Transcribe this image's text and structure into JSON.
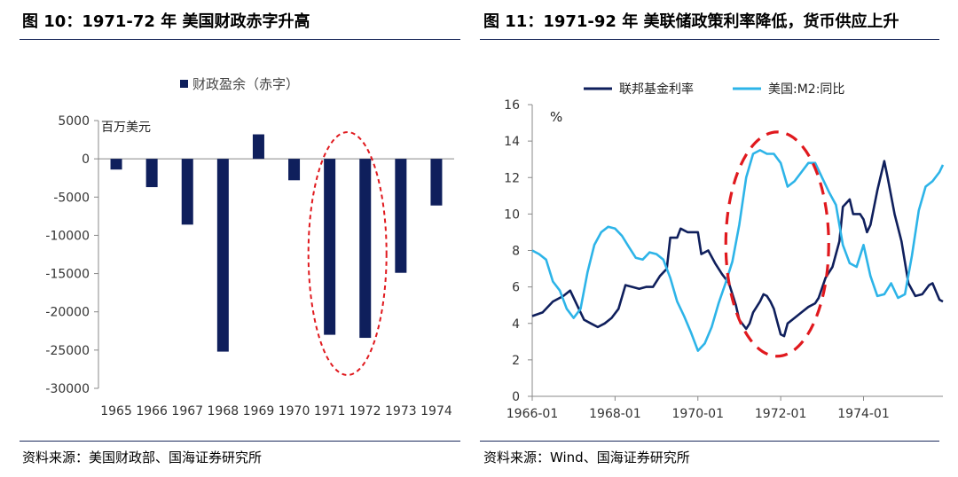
{
  "left": {
    "title": "图 10：1971-72 年  美国财政赤字升高",
    "source": "资料来源：美国财政部、国海证券研究所"
  },
  "right": {
    "title": "图 11：1971-92 年  美联储政策利率降低，货币供应上升",
    "source": "资料来源：Wind、国海证券研究所"
  },
  "colors": {
    "navy": "#0f1f5c",
    "cyan": "#2db4e8",
    "red": "#e0191e",
    "axis": "#888888"
  },
  "chart_data": [
    {
      "type": "bar",
      "title": "",
      "legend": "财政盈余（赤字）",
      "legend_position": "top",
      "unit_label": "百万美元",
      "categories": [
        "1965",
        "1966",
        "1967",
        "1968",
        "1969",
        "1970",
        "1971",
        "1972",
        "1973",
        "1974"
      ],
      "values": [
        -1400,
        -3700,
        -8600,
        -25200,
        3200,
        -2800,
        -23000,
        -23400,
        -14900,
        -6100
      ],
      "ylim": [
        -30000,
        5000
      ],
      "yticks": [
        5000,
        0,
        -5000,
        -10000,
        -15000,
        -20000,
        -25000,
        -30000
      ],
      "grid": false,
      "annotation": {
        "type": "ellipse",
        "style": "dashed",
        "color": "#e0191e",
        "highlight": [
          "1971",
          "1972"
        ]
      }
    },
    {
      "type": "line",
      "title": "",
      "ylabel": "%",
      "ylim": [
        0,
        16
      ],
      "yticks": [
        0,
        2,
        4,
        6,
        8,
        10,
        12,
        14,
        16
      ],
      "xlim": [
        "1966-01",
        "1975-12"
      ],
      "xticks": [
        "1966-01",
        "1968-01",
        "1970-01",
        "1972-01",
        "1974-01"
      ],
      "legend_position": "top",
      "grid": false,
      "series": [
        {
          "name": "联邦基金利率",
          "color": "#0f1f5c",
          "points": [
            [
              "1966-01",
              4.4
            ],
            [
              "1966-04",
              4.6
            ],
            [
              "1966-07",
              5.2
            ],
            [
              "1966-10",
              5.5
            ],
            [
              "1966-12",
              5.8
            ],
            [
              "1967-02",
              5.0
            ],
            [
              "1967-04",
              4.2
            ],
            [
              "1967-06",
              4.0
            ],
            [
              "1967-08",
              3.8
            ],
            [
              "1967-10",
              4.0
            ],
            [
              "1967-12",
              4.3
            ],
            [
              "1968-02",
              4.8
            ],
            [
              "1968-04",
              6.1
            ],
            [
              "1968-06",
              6.0
            ],
            [
              "1968-08",
              5.9
            ],
            [
              "1968-10",
              6.0
            ],
            [
              "1968-12",
              6.0
            ],
            [
              "1969-02",
              6.6
            ],
            [
              "1969-04",
              7.0
            ],
            [
              "1969-05",
              8.7
            ],
            [
              "1969-07",
              8.7
            ],
            [
              "1969-08",
              9.2
            ],
            [
              "1969-10",
              9.0
            ],
            [
              "1969-12",
              9.0
            ],
            [
              "1970-01",
              9.0
            ],
            [
              "1970-02",
              7.8
            ],
            [
              "1970-04",
              8.0
            ],
            [
              "1970-06",
              7.3
            ],
            [
              "1970-08",
              6.7
            ],
            [
              "1970-10",
              6.2
            ],
            [
              "1970-12",
              5.0
            ],
            [
              "1971-01",
              4.2
            ],
            [
              "1971-03",
              3.7
            ],
            [
              "1971-04",
              4.0
            ],
            [
              "1971-05",
              4.6
            ],
            [
              "1971-07",
              5.2
            ],
            [
              "1971-08",
              5.6
            ],
            [
              "1971-09",
              5.5
            ],
            [
              "1971-10",
              5.2
            ],
            [
              "1971-11",
              4.8
            ],
            [
              "1971-12",
              4.1
            ],
            [
              "1972-01",
              3.4
            ],
            [
              "1972-02",
              3.3
            ],
            [
              "1972-03",
              4.0
            ],
            [
              "1972-05",
              4.3
            ],
            [
              "1972-07",
              4.6
            ],
            [
              "1972-09",
              4.9
            ],
            [
              "1972-11",
              5.1
            ],
            [
              "1972-12",
              5.4
            ],
            [
              "1973-02",
              6.5
            ],
            [
              "1973-04",
              7.1
            ],
            [
              "1973-06",
              8.5
            ],
            [
              "1973-07",
              10.4
            ],
            [
              "1973-09",
              10.8
            ],
            [
              "1973-10",
              10.0
            ],
            [
              "1973-12",
              10.0
            ],
            [
              "1974-01",
              9.7
            ],
            [
              "1974-02",
              9.0
            ],
            [
              "1974-03",
              9.4
            ],
            [
              "1974-05",
              11.3
            ],
            [
              "1974-07",
              12.9
            ],
            [
              "1974-08",
              12.0
            ],
            [
              "1974-10",
              10.0
            ],
            [
              "1974-12",
              8.5
            ],
            [
              "1975-02",
              6.2
            ],
            [
              "1975-04",
              5.5
            ],
            [
              "1975-06",
              5.6
            ],
            [
              "1975-08",
              6.1
            ],
            [
              "1975-09",
              6.2
            ],
            [
              "1975-11",
              5.3
            ],
            [
              "1975-12",
              5.2
            ]
          ]
        },
        {
          "name": "美国:M2:同比",
          "color": "#2db4e8",
          "points": [
            [
              "1966-01",
              8.0
            ],
            [
              "1966-03",
              7.8
            ],
            [
              "1966-05",
              7.5
            ],
            [
              "1966-07",
              6.3
            ],
            [
              "1966-09",
              5.8
            ],
            [
              "1966-11",
              4.8
            ],
            [
              "1967-01",
              4.3
            ],
            [
              "1967-03",
              4.8
            ],
            [
              "1967-05",
              6.8
            ],
            [
              "1967-07",
              8.3
            ],
            [
              "1967-09",
              9.0
            ],
            [
              "1967-11",
              9.3
            ],
            [
              "1968-01",
              9.2
            ],
            [
              "1968-03",
              8.8
            ],
            [
              "1968-05",
              8.2
            ],
            [
              "1968-07",
              7.6
            ],
            [
              "1968-09",
              7.5
            ],
            [
              "1968-11",
              7.9
            ],
            [
              "1969-01",
              7.8
            ],
            [
              "1969-03",
              7.5
            ],
            [
              "1969-05",
              6.5
            ],
            [
              "1969-07",
              5.2
            ],
            [
              "1969-09",
              4.4
            ],
            [
              "1969-11",
              3.5
            ],
            [
              "1970-01",
              2.5
            ],
            [
              "1970-03",
              2.9
            ],
            [
              "1970-05",
              3.8
            ],
            [
              "1970-07",
              5.1
            ],
            [
              "1970-09",
              6.2
            ],
            [
              "1970-11",
              7.4
            ],
            [
              "1971-01",
              9.4
            ],
            [
              "1971-03",
              12.0
            ],
            [
              "1971-05",
              13.3
            ],
            [
              "1971-07",
              13.5
            ],
            [
              "1971-09",
              13.3
            ],
            [
              "1971-11",
              13.3
            ],
            [
              "1972-01",
              12.8
            ],
            [
              "1972-03",
              11.5
            ],
            [
              "1972-05",
              11.8
            ],
            [
              "1972-07",
              12.3
            ],
            [
              "1972-09",
              12.8
            ],
            [
              "1972-11",
              12.8
            ],
            [
              "1973-01",
              12.0
            ],
            [
              "1973-03",
              11.2
            ],
            [
              "1973-05",
              10.5
            ],
            [
              "1973-07",
              8.3
            ],
            [
              "1973-09",
              7.3
            ],
            [
              "1973-11",
              7.1
            ],
            [
              "1974-01",
              8.3
            ],
            [
              "1974-03",
              6.6
            ],
            [
              "1974-05",
              5.5
            ],
            [
              "1974-07",
              5.6
            ],
            [
              "1974-09",
              6.2
            ],
            [
              "1974-11",
              5.4
            ],
            [
              "1975-01",
              5.6
            ],
            [
              "1975-03",
              7.7
            ],
            [
              "1975-05",
              10.2
            ],
            [
              "1975-07",
              11.5
            ],
            [
              "1975-09",
              11.8
            ],
            [
              "1975-11",
              12.3
            ],
            [
              "1975-12",
              12.7
            ]
          ]
        }
      ],
      "annotation": {
        "type": "ellipse",
        "style": "dashed",
        "color": "#e0191e",
        "center_x": "1971-12",
        "y_range": [
          2.2,
          14.5
        ]
      }
    }
  ]
}
